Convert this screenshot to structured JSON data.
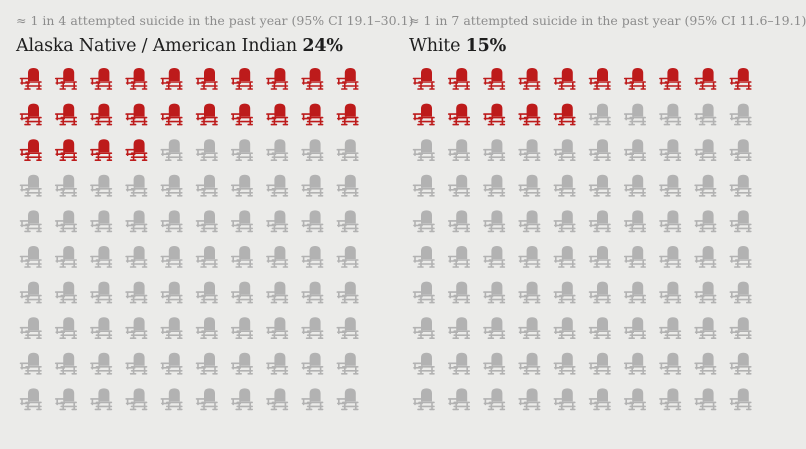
{
  "colors": {
    "background": "#ebebe9",
    "highlight": "#bd1b1b",
    "muted": "#b2b2b2",
    "note_text": "#8c8c8c",
    "title_text": "#1e1e1e"
  },
  "icon": "school-desk-icon",
  "chart_data": [
    {
      "type": "waffle",
      "note": "≈ 1 in 4 attempted suicide in the past year (95% CI 19.1–30.1)",
      "group": "Alaska Native / American Indian",
      "value_label": "24%",
      "value_percent": 24,
      "total_icons": 100,
      "highlighted_icons": 24,
      "rows": 10,
      "cols": 10
    },
    {
      "type": "waffle",
      "note": "≈ 1 in 7 attempted suicide in the past year (95% CI 11.6–19.1)",
      "group": "White",
      "value_label": "15%",
      "value_percent": 15,
      "total_icons": 100,
      "highlighted_icons": 15,
      "rows": 10,
      "cols": 10
    }
  ]
}
